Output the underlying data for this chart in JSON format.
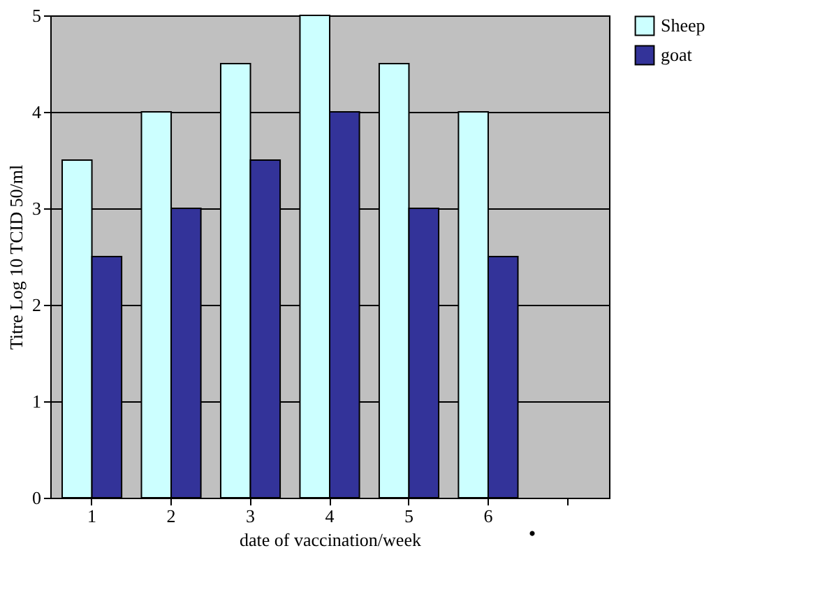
{
  "chart_data": {
    "type": "bar",
    "xlabel": "date of vaccination/week",
    "ylabel": "Titre Log 10 TCID 50/ml",
    "categories": [
      "1",
      "2",
      "3",
      "4",
      "5",
      "6",
      null
    ],
    "series": [
      {
        "name": "Sheep",
        "color": "#ccffff",
        "values": [
          3.5,
          4,
          4.5,
          5,
          4.5,
          4,
          null
        ]
      },
      {
        "name": "goat",
        "color": "#333399",
        "values": [
          2.5,
          3,
          3.5,
          4,
          3,
          2.5,
          null
        ]
      }
    ],
    "ylim": [
      0,
      5
    ],
    "yticks": [
      0,
      1,
      2,
      3,
      4,
      5
    ],
    "grid": "y",
    "legend": "top right",
    "annotations": [
      "."
    ]
  }
}
